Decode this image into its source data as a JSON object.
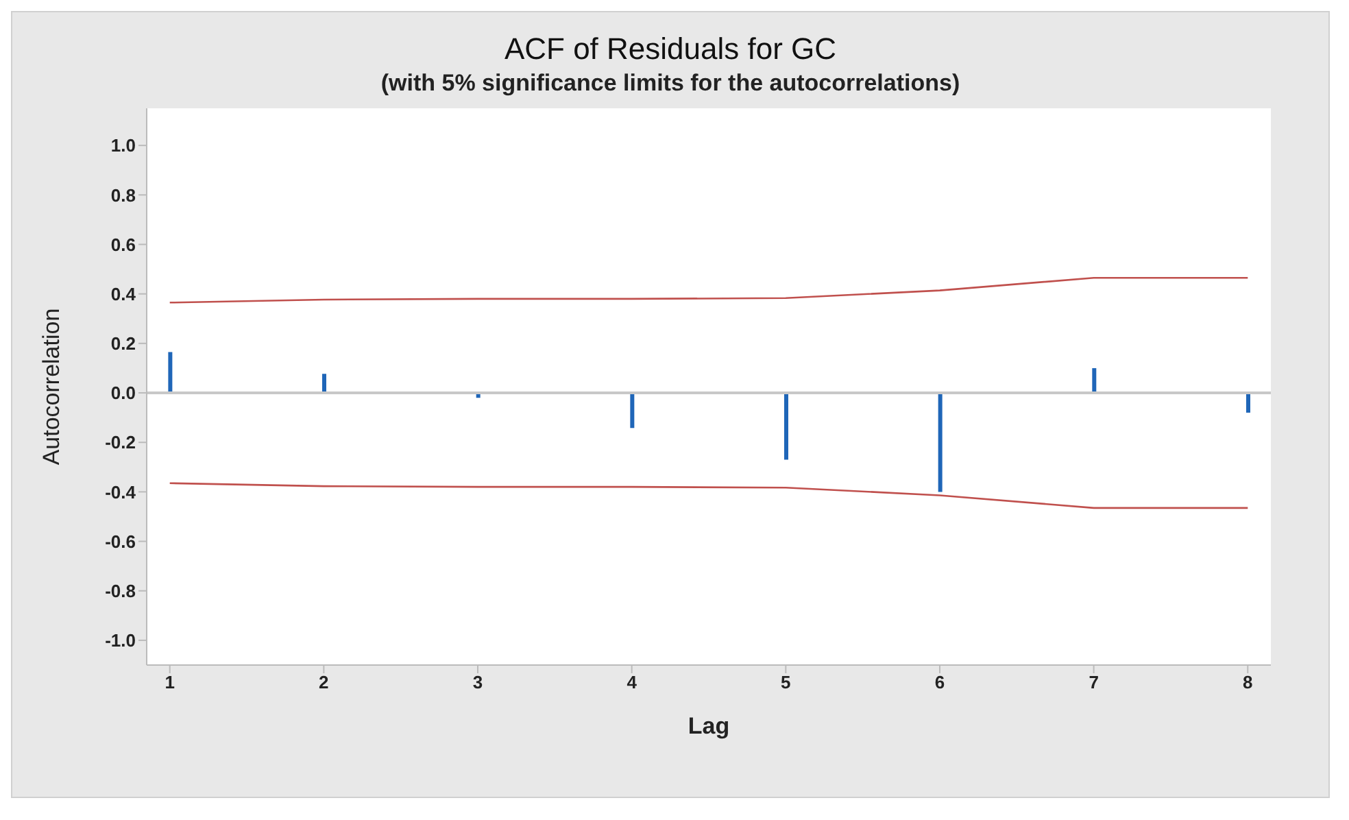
{
  "chart_data": {
    "type": "bar",
    "title": "ACF of Residuals for GC",
    "subtitle": "(with 5% significance limits for the autocorrelations)",
    "xlabel": "Lag",
    "ylabel": "Autocorrelation",
    "x": [
      1,
      2,
      3,
      4,
      5,
      6,
      7,
      8
    ],
    "series": [
      {
        "color": "#1f66b8",
        "values": [
          0.165,
          0.077,
          -0.02,
          -0.142,
          -0.27,
          -0.4,
          0.1,
          -0.08
        ]
      },
      {
        "type": "line",
        "color": "#c0504d",
        "values": [
          0.365,
          0.377,
          0.38,
          0.38,
          0.383,
          0.414,
          0.465,
          0.465
        ]
      },
      {
        "type": "line",
        "color": "#c0504d",
        "values": [
          -0.365,
          -0.377,
          -0.38,
          -0.38,
          -0.383,
          -0.414,
          -0.465,
          -0.465
        ]
      }
    ],
    "xlim": [
      0.85,
      8.15
    ],
    "xticks": [
      1,
      2,
      3,
      4,
      5,
      6,
      7,
      8
    ],
    "ylim": [
      -1.1,
      1.15
    ],
    "yticks": [
      {
        "value": -1,
        "label": "-1.0"
      },
      {
        "value": -0.8,
        "label": "-0.8"
      },
      {
        "value": -0.6,
        "label": "-0.6"
      },
      {
        "value": -0.4,
        "label": "-0.4"
      },
      {
        "value": -0.2,
        "label": "-0.2"
      },
      {
        "value": 0,
        "label": "0.0"
      },
      {
        "value": 0.2,
        "label": "0.2"
      },
      {
        "value": 0.4,
        "label": "0.4"
      },
      {
        "value": 0.6,
        "label": "0.6"
      },
      {
        "value": 0.8,
        "label": "0.8"
      },
      {
        "value": 1,
        "label": "1.0"
      }
    ],
    "ref_lines": [
      {
        "axis": "y",
        "value": 0,
        "color": "#c8c8c8"
      }
    ],
    "grid": false,
    "legend": false,
    "marker": "none"
  }
}
